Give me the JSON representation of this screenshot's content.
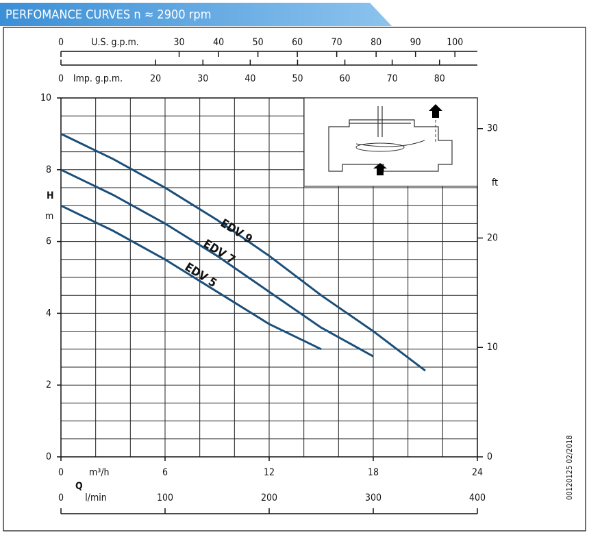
{
  "header": {
    "title": "PERFOMANCE CURVES n ≈ 2900 rpm"
  },
  "chart_data": {
    "type": "line",
    "x_label": "m³/h",
    "q_label": "Q",
    "y_label": "H",
    "y_unit": "m",
    "y2_label": "ft",
    "xlim": [
      0,
      24
    ],
    "xticks": [
      0,
      6,
      12,
      18,
      24
    ],
    "ylim": [
      0,
      10
    ],
    "yticks": [
      0,
      2,
      4,
      6,
      8,
      10
    ],
    "xgrid": [
      0,
      2,
      4,
      6,
      8,
      10,
      12,
      14,
      16,
      18,
      20,
      22,
      24
    ],
    "ygrid": [
      0,
      0.5,
      1,
      1.5,
      2,
      2.5,
      3,
      3.5,
      4,
      4.5,
      5,
      5.5,
      6,
      6.5,
      7,
      7.5,
      8,
      8.5,
      9,
      9.5,
      10
    ],
    "y2lim": [
      0,
      32.8
    ],
    "y2ticks": [
      0,
      10,
      20,
      30
    ],
    "secondary_x_axes": [
      {
        "label": "U.S. g.p.m.",
        "lim": [
          0,
          105.7
        ],
        "ticks": [
          0,
          30,
          40,
          50,
          60,
          70,
          80,
          90,
          100
        ]
      },
      {
        "label": "Imp. g.p.m.",
        "lim": [
          0,
          88
        ],
        "ticks": [
          0,
          20,
          30,
          40,
          50,
          60,
          70,
          80
        ]
      },
      {
        "label": "l/min",
        "lim": [
          0,
          400
        ],
        "ticks": [
          0,
          100,
          200,
          300,
          400
        ]
      }
    ],
    "color": "#1b4f7a",
    "series": [
      {
        "name": "EDV 9",
        "x": [
          0,
          3,
          6,
          9,
          12,
          15,
          18,
          21
        ],
        "values": [
          9.0,
          8.3,
          7.5,
          6.6,
          5.6,
          4.5,
          3.5,
          2.4
        ]
      },
      {
        "name": "EDV 7",
        "x": [
          0,
          3,
          6,
          9,
          12,
          15,
          18
        ],
        "values": [
          8.0,
          7.3,
          6.5,
          5.6,
          4.6,
          3.6,
          2.8
        ]
      },
      {
        "name": "EDV 5",
        "x": [
          0,
          3,
          6,
          9,
          12,
          15
        ],
        "values": [
          7.0,
          6.3,
          5.5,
          4.6,
          3.7,
          3.0
        ]
      }
    ]
  },
  "footer": {
    "code": "00120125 02/2018"
  }
}
